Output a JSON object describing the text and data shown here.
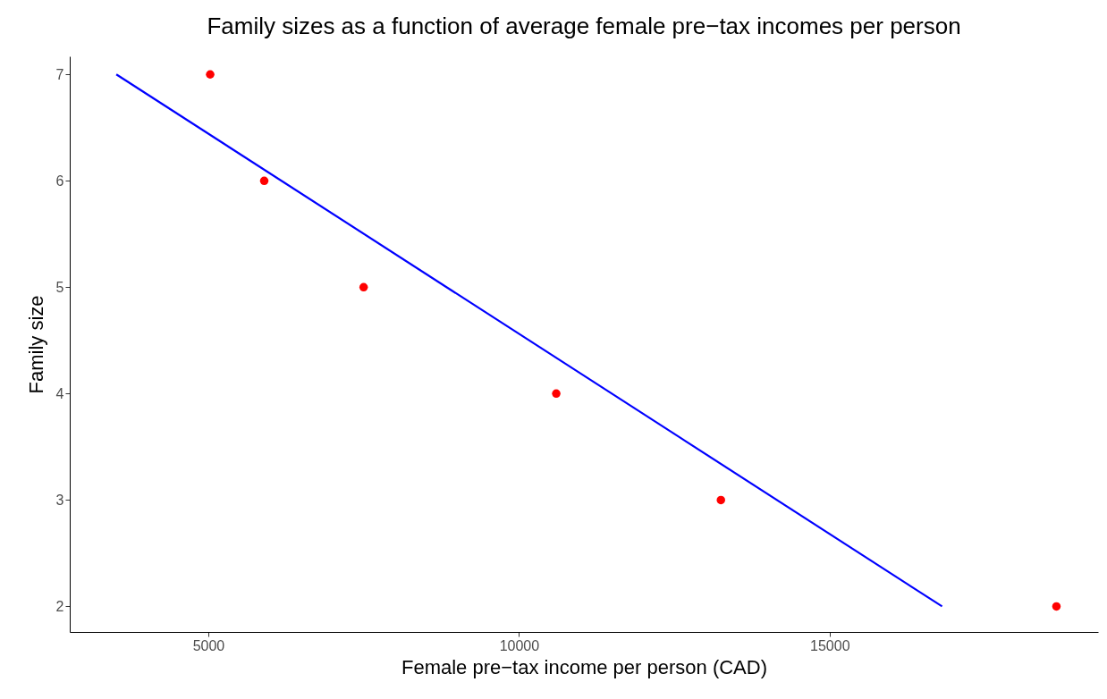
{
  "chart_data": {
    "type": "scatter",
    "title": "Family sizes as a function of average female pre−tax incomes per person",
    "xlabel": "Female pre−tax income per person (CAD)",
    "ylabel": "Family size",
    "series": [
      {
        "color": "#ff0000",
        "marker": "circle",
        "x": [
          5030,
          5900,
          7500,
          10600,
          13250,
          18650
        ],
        "values": [
          7,
          6,
          5,
          4,
          3,
          2
        ]
      },
      {
        "type": "line",
        "color": "#0000ff",
        "marker": "none",
        "x": [
          3520,
          16810
        ],
        "values": [
          7,
          2
        ]
      }
    ],
    "xlim": [
      2770,
      19320
    ],
    "ylim": [
      1.76,
      7.17
    ],
    "xticks": [
      5000,
      10000,
      15000
    ],
    "yticks": [
      2,
      3,
      4,
      5,
      6,
      7
    ],
    "grid": false,
    "line_style": "solid"
  }
}
